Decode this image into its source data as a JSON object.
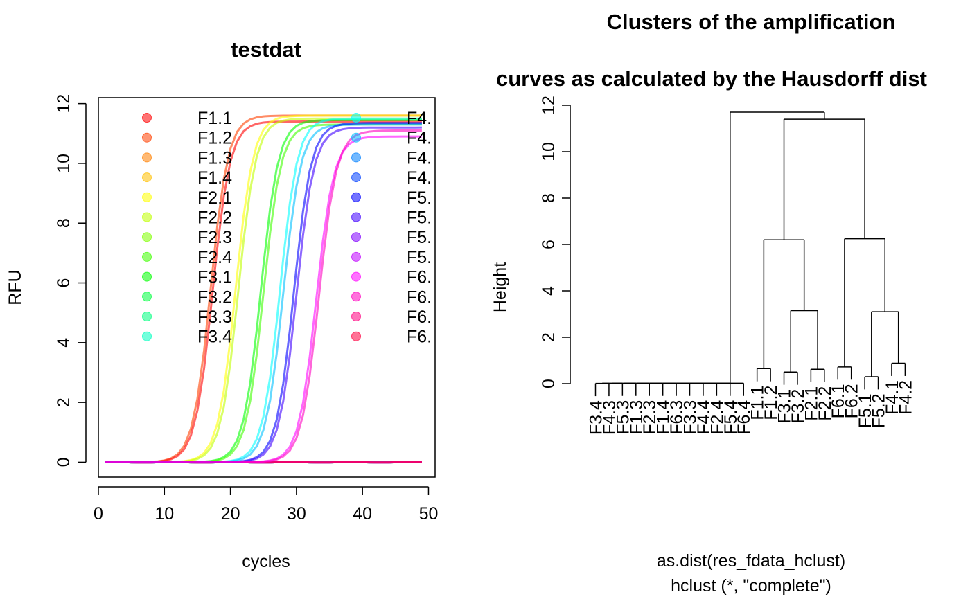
{
  "chart_data": [
    {
      "type": "line",
      "title": "testdat",
      "xlabel": "cycles",
      "ylabel": "RFU",
      "xlim": [
        0,
        51
      ],
      "ylim": [
        -0.5,
        12.2
      ],
      "x_ticks": [
        0,
        10,
        20,
        30,
        40,
        50
      ],
      "y_ticks": [
        0,
        2,
        4,
        6,
        8,
        10,
        12
      ],
      "grid": false,
      "legend_placement": "top",
      "x_range": [
        1,
        49
      ],
      "legend": [
        {
          "name": "F1.1",
          "color": "#FF0000"
        },
        {
          "name": "F1.2",
          "color": "#FF4000"
        },
        {
          "name": "F1.3",
          "color": "#FF8000"
        },
        {
          "name": "F1.4",
          "color": "#FFBF00"
        },
        {
          "name": "F2.1",
          "color": "#FFFF00"
        },
        {
          "name": "F2.2",
          "color": "#BFFF00"
        },
        {
          "name": "F2.3",
          "color": "#80FF00"
        },
        {
          "name": "F2.4",
          "color": "#40FF00"
        },
        {
          "name": "F3.1",
          "color": "#00FF00"
        },
        {
          "name": "F3.2",
          "color": "#00FF40"
        },
        {
          "name": "F3.3",
          "color": "#00FF80"
        },
        {
          "name": "F3.4",
          "color": "#00FFBF"
        },
        {
          "name": "F4.",
          "color": "#00FFFF"
        },
        {
          "name": "F4.",
          "color": "#00BFFF"
        },
        {
          "name": "F4.",
          "color": "#0080FF"
        },
        {
          "name": "F4.",
          "color": "#0040FF"
        },
        {
          "name": "F5.",
          "color": "#0000FF"
        },
        {
          "name": "F5.",
          "color": "#4000FF"
        },
        {
          "name": "F5.",
          "color": "#8000FF"
        },
        {
          "name": "F5.",
          "color": "#BF00FF"
        },
        {
          "name": "F6.",
          "color": "#FF00FF"
        },
        {
          "name": "F6.",
          "color": "#FF00BF"
        },
        {
          "name": "F6.",
          "color": "#FF0080"
        },
        {
          "name": "F6.",
          "color": "#FF0040"
        }
      ],
      "series": [
        {
          "color": "#FF4000",
          "midpoint": 17.0,
          "steepness": 0.75,
          "plateau": 11.6
        },
        {
          "color": "#FF0000",
          "midpoint": 17.3,
          "steepness": 0.75,
          "plateau": 11.4
        },
        {
          "color": "#FFFF00",
          "midpoint": 20.8,
          "steepness": 0.75,
          "plateau": 11.6
        },
        {
          "color": "#BFFF00",
          "midpoint": 21.2,
          "steepness": 0.75,
          "plateau": 11.5
        },
        {
          "color": "#00FF00",
          "midpoint": 24.6,
          "steepness": 0.75,
          "plateau": 11.45
        },
        {
          "color": "#40FF00",
          "midpoint": 25.0,
          "steepness": 0.75,
          "plateau": 11.3
        },
        {
          "color": "#00FFFF",
          "midpoint": 27.5,
          "steepness": 0.75,
          "plateau": 11.5
        },
        {
          "color": "#00BFFF",
          "midpoint": 28.0,
          "steepness": 0.75,
          "plateau": 11.3
        },
        {
          "color": "#0000FF",
          "midpoint": 29.6,
          "steepness": 0.75,
          "plateau": 11.35
        },
        {
          "color": "#4000FF",
          "midpoint": 30.0,
          "steepness": 0.75,
          "plateau": 11.2
        },
        {
          "color": "#FF00FF",
          "midpoint": 33.0,
          "steepness": 0.75,
          "plateau": 10.9
        },
        {
          "color": "#FF00BF",
          "midpoint": 33.4,
          "steepness": 0.75,
          "plateau": 11.1
        },
        {
          "color": "#FF8000",
          "flat": true
        },
        {
          "color": "#FFBF00",
          "flat": true
        },
        {
          "color": "#80FF00",
          "flat": true
        },
        {
          "color": "#00FF40",
          "flat": true
        },
        {
          "color": "#00FF80",
          "flat": true
        },
        {
          "color": "#00FFBF",
          "flat": true
        },
        {
          "color": "#0080FF",
          "flat": true
        },
        {
          "color": "#0040FF",
          "flat": true
        },
        {
          "color": "#8000FF",
          "flat": true
        },
        {
          "color": "#BF00FF",
          "flat": true
        },
        {
          "color": "#FF0080",
          "flat": true
        },
        {
          "color": "#FF0040",
          "flat": true
        }
      ]
    },
    {
      "type": "dendrogram",
      "title_lines": [
        "Clusters of the amplification",
        "curves as calculated by the Hausdorff dist"
      ],
      "ylabel": "Height",
      "xlabel_lines": [
        "as.dist(res_fdata_hclust)",
        "hclust (*, \"complete\")"
      ],
      "ylim": [
        0,
        12
      ],
      "y_ticks": [
        0,
        2,
        4,
        6,
        8,
        10,
        12
      ],
      "leaves": [
        "F3.4",
        "F4.3",
        "F5.3",
        "F1.3",
        "F2.3",
        "F1.4",
        "F6.3",
        "F3.3",
        "F4.4",
        "F2.4",
        "F5.4",
        "F6.4",
        "F1.1",
        "F1.2",
        "F3.1",
        "F3.2",
        "F2.1",
        "F2.2",
        "F6.1",
        "F6.2",
        "F5.1",
        "F5.2",
        "F4.1",
        "F4.2"
      ],
      "merges": [
        {
          "id": "a1",
          "left": 0,
          "right": 1,
          "height": 0.01
        },
        {
          "id": "a2",
          "left": "a1",
          "right": 2,
          "height": 0.02
        },
        {
          "id": "a3",
          "left": "a2",
          "right": 3,
          "height": 0.02
        },
        {
          "id": "a4",
          "left": "a3",
          "right": 4,
          "height": 0.02
        },
        {
          "id": "a5",
          "left": "a4",
          "right": 5,
          "height": 0.02
        },
        {
          "id": "a6",
          "left": "a5",
          "right": 6,
          "height": 0.02
        },
        {
          "id": "a7",
          "left": "a6",
          "right": 7,
          "height": 0.02
        },
        {
          "id": "a8",
          "left": "a7",
          "right": 8,
          "height": 0.02
        },
        {
          "id": "a9",
          "left": "a8",
          "right": 9,
          "height": 0.02
        },
        {
          "id": "a10",
          "left": "a9",
          "right": 10,
          "height": 0.02
        },
        {
          "id": "a11",
          "left": "a10",
          "right": 11,
          "height": 0.02
        },
        {
          "id": "b1",
          "left": 12,
          "right": 13,
          "height": 0.65
        },
        {
          "id": "b2",
          "left": 14,
          "right": 15,
          "height": 0.5
        },
        {
          "id": "b3",
          "left": 16,
          "right": 17,
          "height": 0.62
        },
        {
          "id": "b4",
          "left": "b2",
          "right": "b3",
          "height": 3.15
        },
        {
          "id": "b5",
          "left": "b1",
          "right": "b4",
          "height": 6.2
        },
        {
          "id": "c1",
          "left": 18,
          "right": 19,
          "height": 0.72
        },
        {
          "id": "c2",
          "left": 20,
          "right": 21,
          "height": 0.3
        },
        {
          "id": "c3",
          "left": 22,
          "right": 23,
          "height": 0.88
        },
        {
          "id": "c4",
          "left": "c2",
          "right": "c3",
          "height": 3.1
        },
        {
          "id": "c5",
          "left": "c1",
          "right": "c4",
          "height": 6.25
        },
        {
          "id": "d1",
          "left": "b5",
          "right": "c5",
          "height": 11.4
        },
        {
          "id": "root",
          "left": "a11",
          "right": "d1",
          "height": 11.7
        }
      ]
    }
  ]
}
